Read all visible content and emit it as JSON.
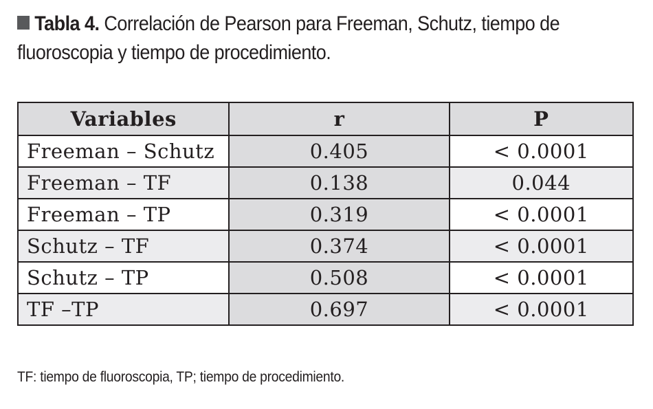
{
  "caption": {
    "label": "Tabla 4.",
    "line1": "Correlación de Pearson para Freeman, Schutz, tiempo de",
    "line2": "fluoroscopia y tiempo de procedimiento."
  },
  "table": {
    "headers": [
      "Variables",
      "r",
      "P"
    ],
    "rows": [
      {
        "variables": "Freeman – Schutz",
        "r": "0.405",
        "p": "< 0.0001"
      },
      {
        "variables": "Freeman – TF",
        "r": "0.138",
        "p": "0.044"
      },
      {
        "variables": "Freeman – TP",
        "r": "0.319",
        "p": "< 0.0001"
      },
      {
        "variables": "Schutz – TF",
        "r": "0.374",
        "p": "< 0.0001"
      },
      {
        "variables": "Schutz – TP",
        "r": "0.508",
        "p": "< 0.0001"
      },
      {
        "variables": "TF –TP",
        "r": "0.697",
        "p": "< 0.0001"
      }
    ]
  },
  "footnote": "TF: tiempo de fluoroscopia, TP; tiempo de procedimiento.",
  "colors": {
    "header_fill": "#dcdcde",
    "r_column_fill": "#dcdcde",
    "alt_row_fill": "#ececee",
    "square_icon": "#58595b",
    "text": "#231f20"
  }
}
